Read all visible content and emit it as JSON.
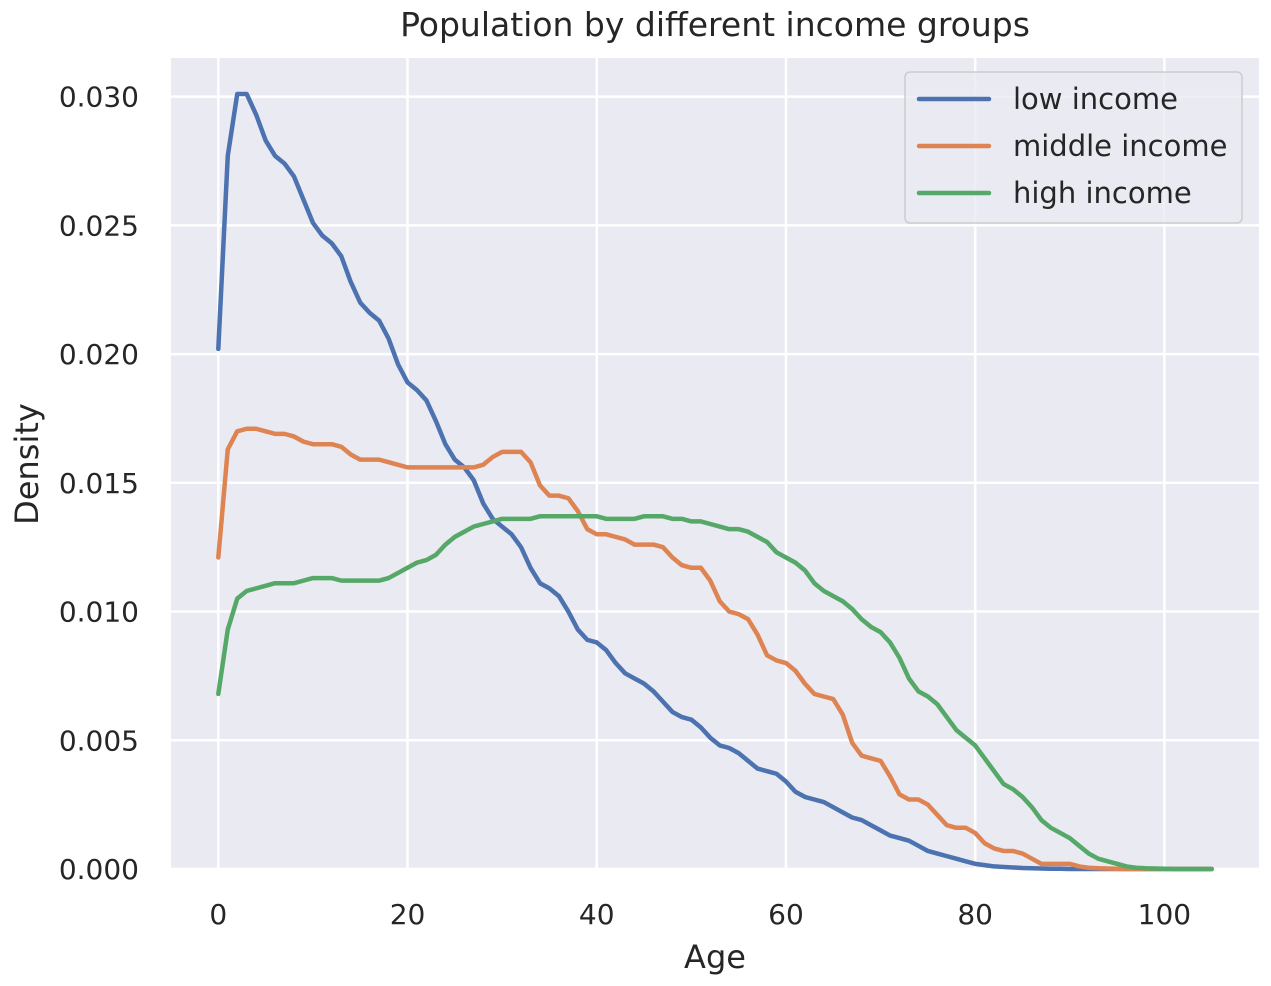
{
  "chart_data": {
    "type": "line",
    "title": "Population by different income groups",
    "xlabel": "Age",
    "ylabel": "Density",
    "xlim": [
      -5,
      110
    ],
    "ylim": [
      0,
      0.0315
    ],
    "xticks": [
      0,
      20,
      40,
      60,
      80,
      100
    ],
    "xtick_labels": [
      "0",
      "20",
      "40",
      "60",
      "80",
      "100"
    ],
    "yticks": [
      0,
      0.005,
      0.01,
      0.015,
      0.02,
      0.025,
      0.03
    ],
    "ytick_labels": [
      "0.000",
      "0.005",
      "0.010",
      "0.015",
      "0.020",
      "0.025",
      "0.030"
    ],
    "grid": true,
    "legend_position": "top-right",
    "background_color": "#eaeaf2",
    "grid_color": "#ffffff",
    "series": [
      {
        "name": "low income",
        "color": "#4c72b0",
        "x": [
          0,
          1,
          2,
          3,
          4,
          5,
          6,
          7,
          8,
          9,
          10,
          11,
          12,
          13,
          14,
          15,
          16,
          17,
          18,
          19,
          20,
          21,
          22,
          23,
          24,
          25,
          26,
          27,
          28,
          29,
          30,
          31,
          32,
          33,
          34,
          35,
          36,
          37,
          38,
          39,
          40,
          41,
          42,
          43,
          44,
          45,
          46,
          47,
          48,
          49,
          50,
          51,
          52,
          53,
          54,
          55,
          56,
          57,
          58,
          59,
          60,
          61,
          62,
          63,
          64,
          65,
          66,
          67,
          68,
          69,
          70,
          71,
          72,
          73,
          74,
          75,
          76,
          77,
          78,
          79,
          80,
          81,
          82,
          83,
          84,
          85,
          86,
          87,
          88,
          89,
          90,
          91,
          92,
          93,
          94,
          95,
          96,
          97,
          98,
          99,
          100,
          101,
          102,
          103,
          104,
          105
        ],
        "y": [
          0.0202,
          0.0277,
          0.0301,
          0.0301,
          0.0293,
          0.0283,
          0.0277,
          0.0274,
          0.0269,
          0.026,
          0.0251,
          0.0246,
          0.0243,
          0.0238,
          0.0228,
          0.022,
          0.0216,
          0.0213,
          0.0206,
          0.0196,
          0.0189,
          0.0186,
          0.0182,
          0.0174,
          0.0165,
          0.0159,
          0.0156,
          0.0151,
          0.0142,
          0.0136,
          0.0133,
          0.013,
          0.0125,
          0.0117,
          0.0111,
          0.0109,
          0.0106,
          0.01,
          0.0093,
          0.0089,
          0.0088,
          0.0085,
          0.008,
          0.0076,
          0.0074,
          0.0072,
          0.0069,
          0.0065,
          0.0061,
          0.0059,
          0.0058,
          0.0055,
          0.0051,
          0.0048,
          0.0047,
          0.0045,
          0.0042,
          0.0039,
          0.0038,
          0.0037,
          0.0034,
          0.003,
          0.0028,
          0.0027,
          0.0026,
          0.0024,
          0.0022,
          0.002,
          0.0019,
          0.0017,
          0.0015,
          0.0013,
          0.0012,
          0.0011,
          0.0009,
          0.0007,
          0.0006,
          0.0005,
          0.0004,
          0.0003,
          0.0002,
          0.00015,
          0.0001,
          8e-05,
          6e-05,
          4e-05,
          3e-05,
          2e-05,
          1e-05,
          1e-05,
          0,
          0,
          0,
          0,
          0,
          0,
          0,
          0,
          0,
          0,
          0,
          0,
          0,
          0,
          0,
          0
        ]
      },
      {
        "name": "middle income",
        "color": "#dd8452",
        "x": [
          0,
          1,
          2,
          3,
          4,
          5,
          6,
          7,
          8,
          9,
          10,
          11,
          12,
          13,
          14,
          15,
          16,
          17,
          18,
          19,
          20,
          21,
          22,
          23,
          24,
          25,
          26,
          27,
          28,
          29,
          30,
          31,
          32,
          33,
          34,
          35,
          36,
          37,
          38,
          39,
          40,
          41,
          42,
          43,
          44,
          45,
          46,
          47,
          48,
          49,
          50,
          51,
          52,
          53,
          54,
          55,
          56,
          57,
          58,
          59,
          60,
          61,
          62,
          63,
          64,
          65,
          66,
          67,
          68,
          69,
          70,
          71,
          72,
          73,
          74,
          75,
          76,
          77,
          78,
          79,
          80,
          81,
          82,
          83,
          84,
          85,
          86,
          87,
          88,
          89,
          90,
          91,
          92,
          93,
          94,
          95,
          96,
          97,
          98,
          99,
          100,
          101,
          102,
          103,
          104,
          105
        ],
        "y": [
          0.0121,
          0.0163,
          0.017,
          0.0171,
          0.0171,
          0.017,
          0.0169,
          0.0169,
          0.0168,
          0.0166,
          0.0165,
          0.0165,
          0.0165,
          0.0164,
          0.0161,
          0.0159,
          0.0159,
          0.0159,
          0.0158,
          0.0157,
          0.0156,
          0.0156,
          0.0156,
          0.0156,
          0.0156,
          0.0156,
          0.0156,
          0.0156,
          0.0157,
          0.016,
          0.0162,
          0.0162,
          0.0162,
          0.0158,
          0.0149,
          0.0145,
          0.0145,
          0.0144,
          0.0139,
          0.0132,
          0.013,
          0.013,
          0.0129,
          0.0128,
          0.0126,
          0.0126,
          0.0126,
          0.0125,
          0.0121,
          0.0118,
          0.0117,
          0.0117,
          0.0112,
          0.0104,
          0.01,
          0.0099,
          0.0097,
          0.0091,
          0.0083,
          0.0081,
          0.008,
          0.0077,
          0.0072,
          0.0068,
          0.0067,
          0.0066,
          0.006,
          0.0049,
          0.0044,
          0.0043,
          0.0042,
          0.0036,
          0.0029,
          0.0027,
          0.0027,
          0.0025,
          0.0021,
          0.0017,
          0.0016,
          0.0016,
          0.0014,
          0.001,
          0.0008,
          0.0007,
          0.0007,
          0.0006,
          0.0004,
          0.0002,
          0.0002,
          0.0002,
          0.0002,
          0.0001,
          5e-05,
          3e-05,
          2e-05,
          1e-05,
          0,
          0,
          0,
          0,
          0,
          0,
          0,
          0,
          0,
          0
        ]
      },
      {
        "name": "high income",
        "color": "#55a868",
        "x": [
          0,
          1,
          2,
          3,
          4,
          5,
          6,
          7,
          8,
          9,
          10,
          11,
          12,
          13,
          14,
          15,
          16,
          17,
          18,
          19,
          20,
          21,
          22,
          23,
          24,
          25,
          26,
          27,
          28,
          29,
          30,
          31,
          32,
          33,
          34,
          35,
          36,
          37,
          38,
          39,
          40,
          41,
          42,
          43,
          44,
          45,
          46,
          47,
          48,
          49,
          50,
          51,
          52,
          53,
          54,
          55,
          56,
          57,
          58,
          59,
          60,
          61,
          62,
          63,
          64,
          65,
          66,
          67,
          68,
          69,
          70,
          71,
          72,
          73,
          74,
          75,
          76,
          77,
          78,
          79,
          80,
          81,
          82,
          83,
          84,
          85,
          86,
          87,
          88,
          89,
          90,
          91,
          92,
          93,
          94,
          95,
          96,
          97,
          98,
          99,
          100,
          101,
          102,
          103,
          104,
          105
        ],
        "y": [
          0.0068,
          0.0093,
          0.0105,
          0.0108,
          0.0109,
          0.011,
          0.0111,
          0.0111,
          0.0111,
          0.0112,
          0.0113,
          0.0113,
          0.0113,
          0.0112,
          0.0112,
          0.0112,
          0.0112,
          0.0112,
          0.0113,
          0.0115,
          0.0117,
          0.0119,
          0.012,
          0.0122,
          0.0126,
          0.0129,
          0.0131,
          0.0133,
          0.0134,
          0.0135,
          0.0136,
          0.0136,
          0.0136,
          0.0136,
          0.0137,
          0.0137,
          0.0137,
          0.0137,
          0.0137,
          0.0137,
          0.0137,
          0.0136,
          0.0136,
          0.0136,
          0.0136,
          0.0137,
          0.0137,
          0.0137,
          0.0136,
          0.0136,
          0.0135,
          0.0135,
          0.0134,
          0.0133,
          0.0132,
          0.0132,
          0.0131,
          0.0129,
          0.0127,
          0.0123,
          0.0121,
          0.0119,
          0.0116,
          0.0111,
          0.0108,
          0.0106,
          0.0104,
          0.0101,
          0.0097,
          0.0094,
          0.0092,
          0.0088,
          0.0082,
          0.0074,
          0.0069,
          0.0067,
          0.0064,
          0.0059,
          0.0054,
          0.0051,
          0.0048,
          0.0043,
          0.0038,
          0.0033,
          0.0031,
          0.0028,
          0.0024,
          0.0019,
          0.0016,
          0.0014,
          0.0012,
          0.0009,
          0.0006,
          0.0004,
          0.0003,
          0.0002,
          0.0001,
          5e-05,
          3e-05,
          2e-05,
          1e-05,
          0,
          0,
          0,
          0,
          0
        ]
      }
    ]
  }
}
